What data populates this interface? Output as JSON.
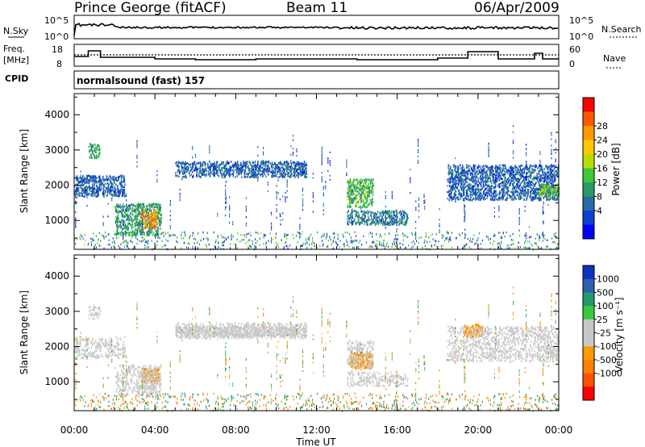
{
  "header": {
    "station": "Prince George (fitACF)",
    "beam": "Beam 11",
    "date": "06/Apr/2009"
  },
  "noise_panel": {
    "left_label": "N.Sky",
    "right_label": "N.Search",
    "y_top": "10^5",
    "y_bottom": "10^0",
    "right_top": "10^5",
    "right_bottom": "10^0"
  },
  "freq_panel": {
    "left_label_1": "Freq.",
    "left_label_2": "[MHz]",
    "y_top": "18",
    "y_bottom": "8",
    "right_label": "Nave",
    "right_top": "60",
    "right_bottom": "0"
  },
  "cpid": {
    "label": "CPID",
    "mode": "normalsound (fast) 157"
  },
  "time_axis": {
    "ticks": [
      "00:00",
      "04:00",
      "08:00",
      "12:00",
      "16:00",
      "20:00",
      "00:00"
    ],
    "xlabel": "Time UT"
  },
  "power_panel": {
    "ylabel": "Slant Range [km]",
    "yticks": [
      "4000",
      "3000",
      "2000",
      "1000"
    ],
    "colorbar_label": "Power [dB]",
    "colorbar_ticks": [
      "28",
      "24",
      "20",
      "16",
      "12",
      "8",
      "4"
    ],
    "colors": [
      "#ff0000",
      "#ff5a00",
      "#ff9a00",
      "#ffc800",
      "#bcdc00",
      "#3cc83c",
      "#2a9a64",
      "#2a6aa0",
      "#1040d0",
      "#0000ff"
    ]
  },
  "velocity_panel": {
    "ylabel": "Slant Range [km]",
    "yticks": [
      "4000",
      "3000",
      "2000",
      "1000"
    ],
    "colorbar_label": "Velocity [m s⁻¹]",
    "colorbar_ticks": [
      "1000",
      "500",
      "100",
      "25",
      "-25",
      "-100",
      "-500",
      "-1000"
    ],
    "colors": [
      "#1030c0",
      "#2f5fb0",
      "#1f9a6e",
      "#3cc83c",
      "#c8c8c8",
      "#c8c8c8",
      "#ff9a00",
      "#ff8000",
      "#ff5000",
      "#ff0000"
    ]
  },
  "chart_data": {
    "type": "heatmap",
    "x_range_hours": [
      0,
      24
    ],
    "y_range_km": [
      180,
      4600
    ],
    "power_clusters": [
      {
        "t0": 0.0,
        "t1": 2.5,
        "r0": 1700,
        "r1": 2300,
        "value_db": 8
      },
      {
        "t0": 0.7,
        "t1": 1.3,
        "r0": 2800,
        "r1": 3200,
        "value_db": 12
      },
      {
        "t0": 2.0,
        "t1": 4.3,
        "r0": 600,
        "r1": 1500,
        "value_db": 12
      },
      {
        "t0": 3.3,
        "t1": 4.1,
        "r0": 800,
        "r1": 1300,
        "value_db": 24
      },
      {
        "t0": 5.0,
        "t1": 11.5,
        "r0": 2250,
        "r1": 2700,
        "value_db": 8
      },
      {
        "t0": 13.5,
        "t1": 14.8,
        "r0": 1400,
        "r1": 2200,
        "value_db": 14
      },
      {
        "t0": 13.5,
        "t1": 16.5,
        "r0": 900,
        "r1": 1300,
        "value_db": 10
      },
      {
        "t0": 18.5,
        "t1": 24.0,
        "r0": 1600,
        "r1": 2600,
        "value_db": 8
      },
      {
        "t0": 23.0,
        "t1": 24.0,
        "r0": 1700,
        "r1": 2050,
        "value_db": 16
      }
    ],
    "velocity_clusters": [
      {
        "t0": 3.3,
        "t1": 4.2,
        "r0": 1000,
        "r1": 1400,
        "value_ms": -100
      },
      {
        "t0": 13.6,
        "t1": 14.8,
        "r0": 1400,
        "r1": 1900,
        "value_ms": -100
      },
      {
        "t0": 5.0,
        "t1": 11.5,
        "r0": 2300,
        "r1": 2600,
        "value_ms": 0
      },
      {
        "t0": 19.3,
        "t1": 20.2,
        "r0": 2300,
        "r1": 2650,
        "value_ms": -100
      }
    ]
  }
}
